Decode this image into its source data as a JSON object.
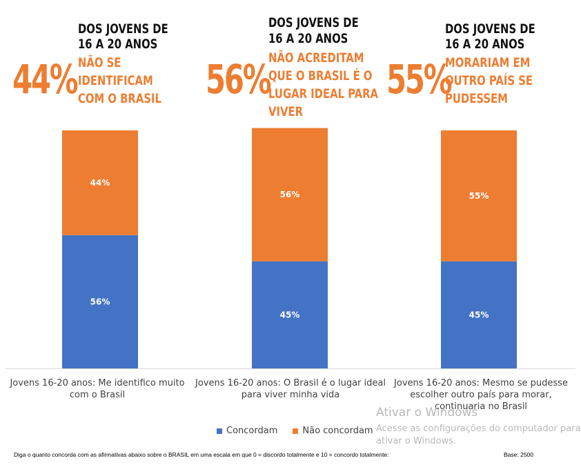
{
  "callouts": [
    {
      "pct": "44%",
      "header": [
        "DOS JOVENS DE",
        "16 A 20 ANOS"
      ],
      "desc": [
        "NÃO SE",
        "IDENTIFICAM",
        "COM O BRASIL"
      ]
    },
    {
      "pct": "56%",
      "header": [
        "DOS JOVENS DE",
        "16 A 20 ANOS"
      ],
      "desc": [
        "NÃO ACREDITAM",
        "QUE O BRASIL É O",
        "LUGAR IDEAL PARA",
        "VIVER"
      ]
    },
    {
      "pct": "55%",
      "header": [
        "DOS JOVENS DE",
        "16 A 20 ANOS"
      ],
      "desc": [
        "MORARIAM EM",
        "OUTRO PAÍS SE",
        "PUDESSEM"
      ]
    }
  ],
  "chart_data": {
    "type": "bar",
    "stacked": true,
    "categories": [
      [
        "Jovens 16-20 anos: Me identifico muito",
        "com o Brasil"
      ],
      [
        "Jovens 16-20 anos: O Brasil é o lugar ideal",
        "para viver minha vida"
      ],
      [
        "Jovens 16-20 anos: Mesmo se pudesse",
        "escolher outro país para morar,",
        "continuaria no Brasil"
      ]
    ],
    "series": [
      {
        "name": "Concordam",
        "color": "#4472C4",
        "values": [
          56,
          45,
          45
        ],
        "labels": [
          "56%",
          "45%",
          "45%"
        ]
      },
      {
        "name": "Não concordam",
        "color": "#ED7D31",
        "values": [
          44,
          56,
          55
        ],
        "labels": [
          "44%",
          "56%",
          "55%"
        ]
      }
    ],
    "ylim": [
      0,
      100
    ],
    "legend_position": "bottom"
  },
  "footer": {
    "note": "Diga o quanto concorda com as afirmativas abaixo sobre o BRASIL em uma escala em que 0 = discordo totalmente e 10 = concordo totalmente:",
    "base": "Base: 2500"
  },
  "watermark": {
    "title": "Ativar o Windows",
    "line1": "Acesse as configurações do computador para",
    "line2": "ativar o Windows."
  }
}
